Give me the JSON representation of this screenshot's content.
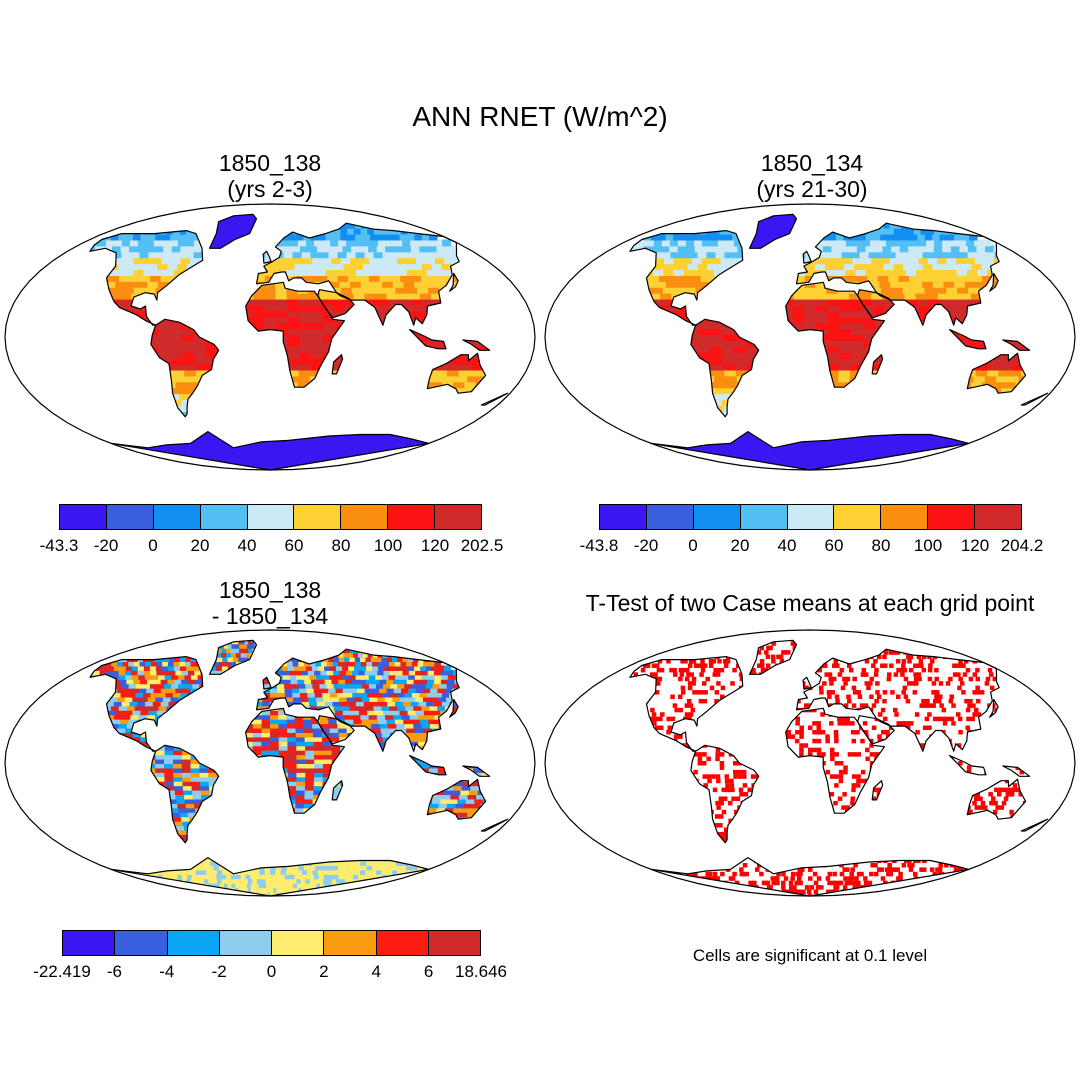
{
  "title": "ANN RNET (W/m^2)",
  "panels": [
    {
      "id": "p1",
      "title_line1": "1850_138",
      "title_line2": "(yrs 2-3)",
      "type": "field",
      "colorbar": {
        "labels": [
          "-43.3",
          "-20",
          "0",
          "20",
          "40",
          "60",
          "80",
          "100",
          "120",
          "202.5"
        ],
        "colors": [
          "#3b16f2",
          "#3a5fdc",
          "#138ff2",
          "#54bff2",
          "#cde9f6",
          "#fdd033",
          "#f98e10",
          "#fb1212",
          "#d02a2a"
        ]
      }
    },
    {
      "id": "p2",
      "title_line1": "1850_134",
      "title_line2": "(yrs 21-30)",
      "type": "field",
      "colorbar": {
        "labels": [
          "-43.8",
          "-20",
          "0",
          "20",
          "40",
          "60",
          "80",
          "100",
          "120",
          "204.2"
        ],
        "colors": [
          "#3b16f2",
          "#3a5fdc",
          "#138ff2",
          "#54bff2",
          "#cde9f6",
          "#fdd033",
          "#f98e10",
          "#fb1212",
          "#d02a2a"
        ]
      }
    },
    {
      "id": "p3",
      "title_line1": "1850_138",
      "title_line2": "- 1850_134",
      "type": "difference",
      "colorbar": {
        "labels": [
          "-22.419",
          "-6",
          "-4",
          "-2",
          "0",
          "2",
          "4",
          "6",
          "18.646"
        ],
        "colors": [
          "#3b16f2",
          "#3a5fdc",
          "#0ca6f5",
          "#8fcdee",
          "#fdec6e",
          "#f99c10",
          "#fb1d12",
          "#d02a2a"
        ]
      }
    },
    {
      "id": "p4",
      "title": "T-Test of two Case means at each grid point",
      "type": "significance",
      "mark_color": "#ff0000",
      "note": "Cells are significant at 0.1 level"
    }
  ]
}
